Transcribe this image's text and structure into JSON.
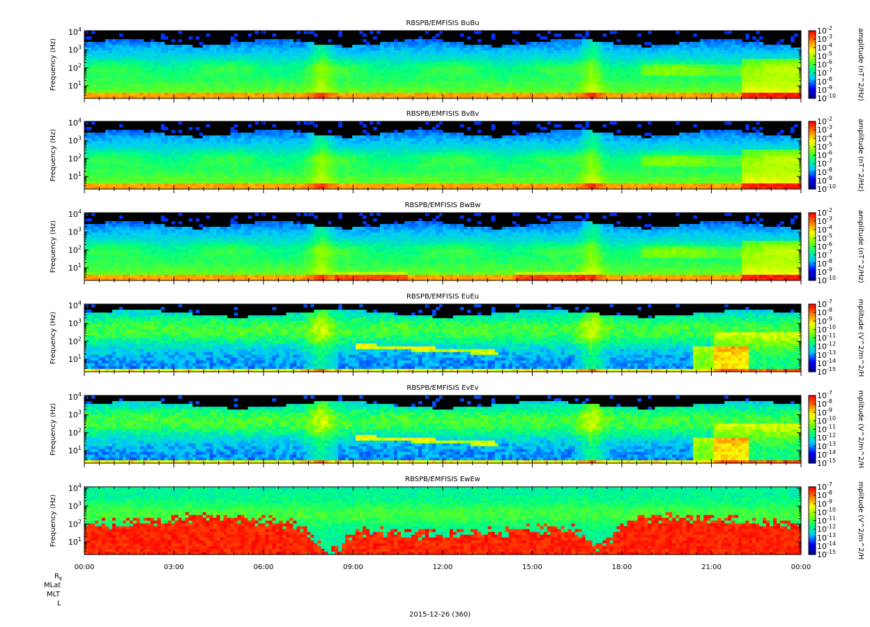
{
  "chart_data": [
    {
      "type": "heatmap",
      "title": "RBSPB/EMFISIS  BuBu",
      "ylabel": "Frequency (Hz)",
      "zlabel": "amplitude (nT^2/Hz)",
      "yscale": "log",
      "ylim": [
        2,
        12000
      ],
      "yticks": [
        {
          "value": 10,
          "label": "10^1"
        },
        {
          "value": 100,
          "label": "10^2"
        },
        {
          "value": 1000,
          "label": "10^3"
        },
        {
          "value": 10000,
          "label": "10^4"
        }
      ],
      "zscale": "log",
      "zlim_exp": [
        -10,
        -2
      ],
      "zticks": [
        "10^-2",
        "10^-3",
        "10^-4",
        "10^-5",
        "10^-6",
        "10^-7",
        "10^-8",
        "10^-9",
        "10^-10"
      ],
      "colormap": [
        "#00008b",
        "#0000ff",
        "#00c8ff",
        "#00ff80",
        "#80ff00",
        "#ffff00",
        "#ff8000",
        "#ff0000"
      ],
      "profile": "B"
    },
    {
      "type": "heatmap",
      "title": "RBSPB/EMFISIS  BvBv",
      "ylabel": "Frequency (Hz)",
      "zlabel": "amplitude (nT^2/Hz)",
      "yscale": "log",
      "ylim": [
        2,
        12000
      ],
      "yticks": [
        {
          "value": 10,
          "label": "10^1"
        },
        {
          "value": 100,
          "label": "10^2"
        },
        {
          "value": 1000,
          "label": "10^3"
        },
        {
          "value": 10000,
          "label": "10^4"
        }
      ],
      "zscale": "log",
      "zlim_exp": [
        -10,
        -2
      ],
      "zticks": [
        "10^-2",
        "10^-3",
        "10^-4",
        "10^-5",
        "10^-6",
        "10^-7",
        "10^-8",
        "10^-9",
        "10^-10"
      ],
      "colormap": [
        "#00008b",
        "#0000ff",
        "#00c8ff",
        "#00ff80",
        "#80ff00",
        "#ffff00",
        "#ff8000",
        "#ff0000"
      ],
      "profile": "B"
    },
    {
      "type": "heatmap",
      "title": "RBSPB/EMFISIS  BwBw",
      "ylabel": "Frequency (Hz)",
      "zlabel": "amplitude (nT^2/Hz)",
      "yscale": "log",
      "ylim": [
        2,
        12000
      ],
      "yticks": [
        {
          "value": 10,
          "label": "10^1"
        },
        {
          "value": 100,
          "label": "10^2"
        },
        {
          "value": 1000,
          "label": "10^3"
        },
        {
          "value": 10000,
          "label": "10^4"
        }
      ],
      "zscale": "log",
      "zlim_exp": [
        -10,
        -2
      ],
      "zticks": [
        "10^-2",
        "10^-3",
        "10^-4",
        "10^-5",
        "10^-6",
        "10^-7",
        "10^-8",
        "10^-9",
        "10^-10"
      ],
      "colormap": [
        "#00008b",
        "#0000ff",
        "#00c8ff",
        "#00ff80",
        "#80ff00",
        "#ffff00",
        "#ff8000",
        "#ff0000"
      ],
      "profile": "Bw"
    },
    {
      "type": "heatmap",
      "title": "RBSPB/EMFISIS  EuEu",
      "ylabel": "Frequency (Hz)",
      "zlabel": "mplitude (V^2/m^2/H",
      "yscale": "log",
      "ylim": [
        2,
        12000
      ],
      "yticks": [
        {
          "value": 10,
          "label": "10^1"
        },
        {
          "value": 100,
          "label": "10^2"
        },
        {
          "value": 1000,
          "label": "10^3"
        },
        {
          "value": 10000,
          "label": "10^4"
        }
      ],
      "zscale": "log",
      "zlim_exp": [
        -15,
        -7
      ],
      "zticks": [
        "10^-7",
        "10^-8",
        "10^-9",
        "10^-10",
        "10^-11",
        "10^-12",
        "10^-13",
        "10^-14",
        "10^-15"
      ],
      "colormap": [
        "#00008b",
        "#0000ff",
        "#00c8ff",
        "#00ff80",
        "#80ff00",
        "#ffff00",
        "#ff8000",
        "#ff0000"
      ],
      "profile": "E"
    },
    {
      "type": "heatmap",
      "title": "RBSPB/EMFISIS  EvEv",
      "ylabel": "Frequency (Hz)",
      "zlabel": "mplitude (V^2/m^2/H",
      "yscale": "log",
      "ylim": [
        2,
        12000
      ],
      "yticks": [
        {
          "value": 10,
          "label": "10^1"
        },
        {
          "value": 100,
          "label": "10^2"
        },
        {
          "value": 1000,
          "label": "10^3"
        },
        {
          "value": 10000,
          "label": "10^4"
        }
      ],
      "zscale": "log",
      "zlim_exp": [
        -15,
        -7
      ],
      "zticks": [
        "10^-7",
        "10^-8",
        "10^-9",
        "10^-10",
        "10^-11",
        "10^-12",
        "10^-13",
        "10^-14",
        "10^-15"
      ],
      "colormap": [
        "#00008b",
        "#0000ff",
        "#00c8ff",
        "#00ff80",
        "#80ff00",
        "#ffff00",
        "#ff8000",
        "#ff0000"
      ],
      "profile": "E"
    },
    {
      "type": "heatmap",
      "title": "RBSPB/EMFISIS  EwEw",
      "ylabel": "Frequency (Hz)",
      "zlabel": "mplitude (V^2/m^2/H",
      "yscale": "log",
      "ylim": [
        2,
        12000
      ],
      "yticks": [
        {
          "value": 10,
          "label": "10^1"
        },
        {
          "value": 100,
          "label": "10^2"
        },
        {
          "value": 1000,
          "label": "10^3"
        },
        {
          "value": 10000,
          "label": "10^4"
        }
      ],
      "zscale": "log",
      "zlim_exp": [
        -15,
        -7
      ],
      "zticks": [
        "10^-7",
        "10^-8",
        "10^-9",
        "10^-10",
        "10^-11",
        "10^-12",
        "10^-13",
        "10^-14",
        "10^-15"
      ],
      "colormap": [
        "#00008b",
        "#0000ff",
        "#00c8ff",
        "#00ff80",
        "#80ff00",
        "#ffff00",
        "#ff8000",
        "#ff0000"
      ],
      "profile": "Ew"
    }
  ],
  "xaxis": {
    "ticks": [
      "00:00",
      "03:00",
      "06:00",
      "09:00",
      "12:00",
      "15:00",
      "18:00",
      "21:00",
      "00:00"
    ],
    "range_hours": [
      0,
      24
    ],
    "minor_hours": 0.5
  },
  "ephemeris_labels": {
    "re": "R",
    "re_sub": "E",
    "mlat": "MLat",
    "mlt": "MLT",
    "l": "L"
  },
  "date_label": "2015-12-26 (360)"
}
